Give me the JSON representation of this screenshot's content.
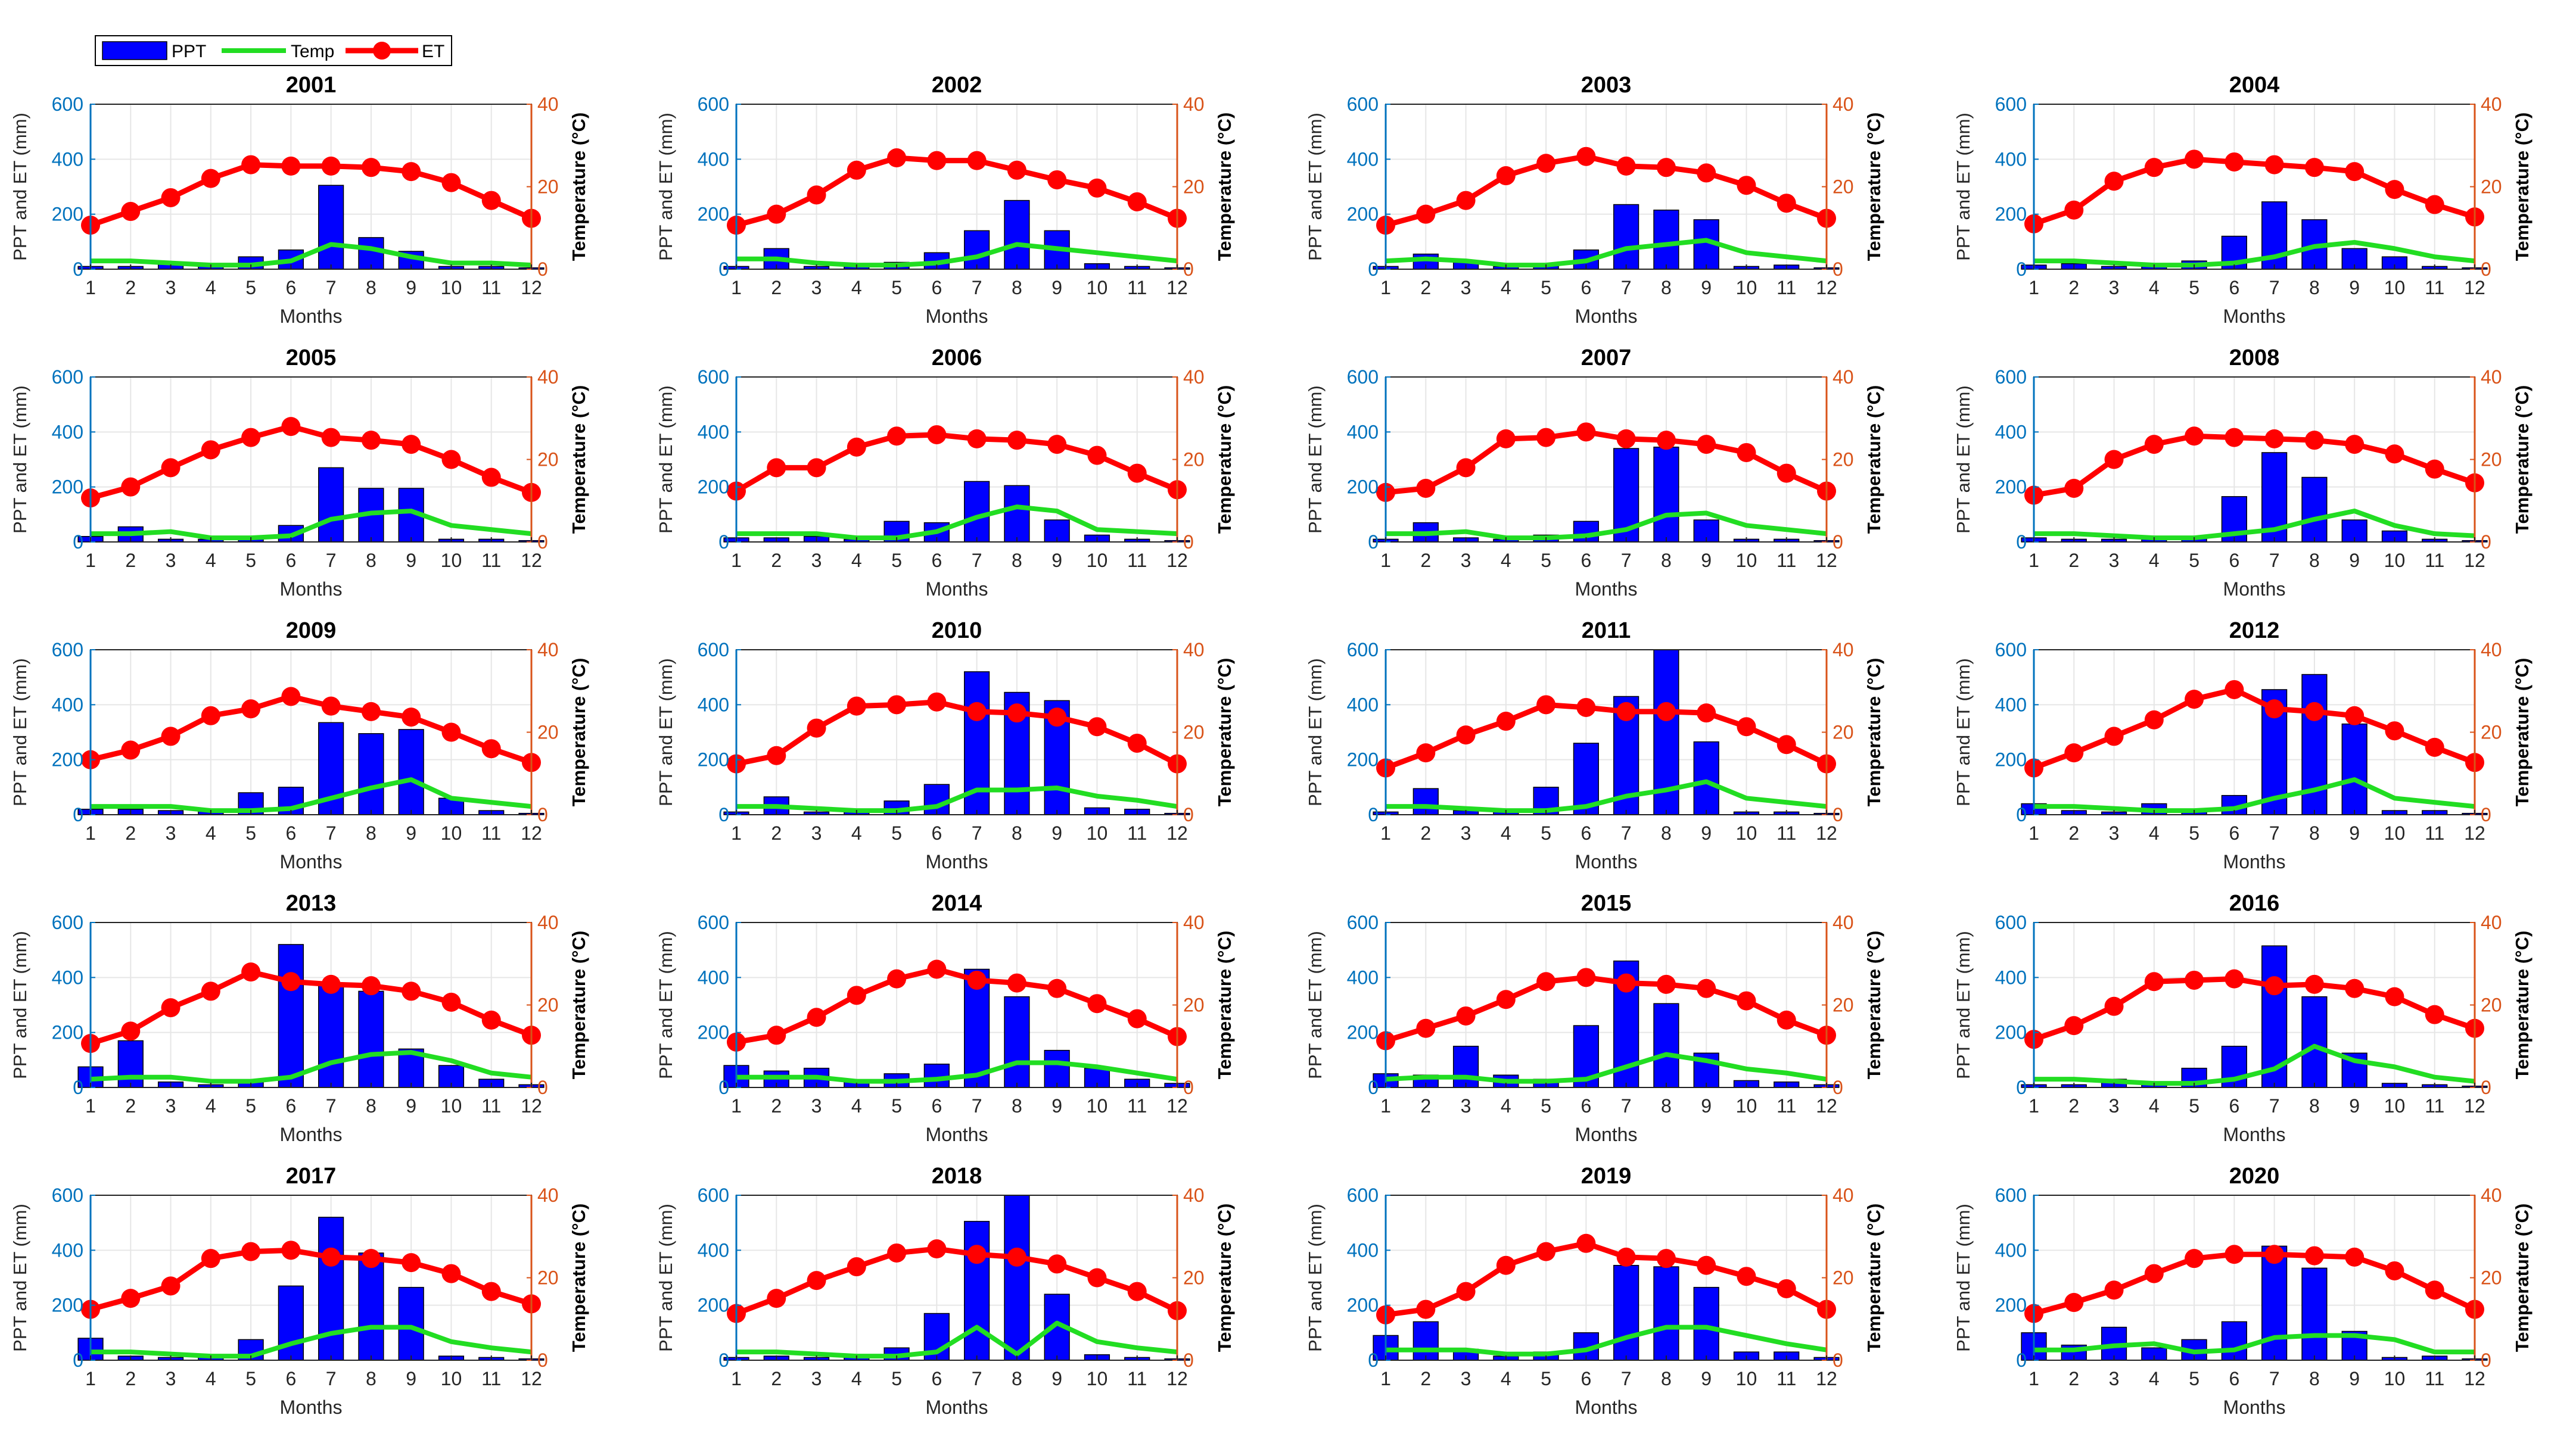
{
  "legend": {
    "ppt": "PPT",
    "temp": "Temp",
    "et": "ET"
  },
  "colors": {
    "ppt": "#0000ff",
    "temp": "#22dd22",
    "et": "#ff0000",
    "left_axis": "#0072bd",
    "right_axis": "#d95319",
    "grid": "#e6e6e6"
  },
  "axis_labels": {
    "x": "Months",
    "y_left": "PPT and ET (mm)",
    "y_right": "Temperature (°C)"
  },
  "chart_data": {
    "type": "bar+line",
    "xlabel": "Months",
    "ylabel_left": "PPT and ET (mm)",
    "ylabel_right": "Temperature (°C)",
    "categories": [
      "1",
      "2",
      "3",
      "4",
      "5",
      "6",
      "7",
      "8",
      "9",
      "10",
      "11",
      "12"
    ],
    "y_left_lim": [
      0,
      600
    ],
    "y_left_ticks": [
      "0",
      "200",
      "400",
      "600"
    ],
    "y_right_lim": [
      0,
      40
    ],
    "y_right_ticks": [
      "0",
      "20",
      "40"
    ],
    "grid": true,
    "legend_position": "top-left",
    "panels": [
      {
        "title": "2001",
        "ppt": [
          10,
          10,
          25,
          15,
          45,
          70,
          305,
          115,
          65,
          10,
          10,
          5
        ],
        "temp": [
          2,
          2,
          1.5,
          1,
          1,
          2,
          6,
          5,
          3,
          1.5,
          1.5,
          1
        ],
        "et": [
          160,
          210,
          260,
          330,
          380,
          375,
          375,
          370,
          355,
          315,
          250,
          185
        ]
      },
      {
        "title": "2002",
        "ppt": [
          10,
          75,
          10,
          10,
          25,
          60,
          140,
          250,
          140,
          20,
          10,
          5
        ],
        "temp": [
          2.5,
          2.5,
          1.5,
          1,
          1,
          1.5,
          3,
          6,
          5,
          4,
          3,
          2
        ],
        "et": [
          160,
          200,
          270,
          360,
          405,
          395,
          395,
          360,
          325,
          295,
          245,
          185
        ]
      },
      {
        "title": "2003",
        "ppt": [
          10,
          55,
          25,
          10,
          15,
          70,
          235,
          215,
          180,
          10,
          15,
          5
        ],
        "temp": [
          2,
          2.5,
          2,
          1,
          1,
          2,
          5,
          6,
          7,
          4,
          3,
          2
        ],
        "et": [
          160,
          200,
          250,
          340,
          385,
          410,
          375,
          370,
          350,
          305,
          240,
          185
        ]
      },
      {
        "title": "2004",
        "ppt": [
          15,
          20,
          10,
          10,
          30,
          120,
          245,
          180,
          75,
          45,
          10,
          5
        ],
        "temp": [
          2,
          2,
          1.5,
          1,
          1,
          1.5,
          3,
          5.5,
          6.5,
          5,
          3,
          2
        ],
        "et": [
          165,
          215,
          320,
          370,
          400,
          390,
          380,
          370,
          355,
          290,
          235,
          190
        ]
      },
      {
        "title": "2005",
        "ppt": [
          20,
          55,
          10,
          10,
          15,
          60,
          270,
          195,
          195,
          10,
          10,
          5
        ],
        "temp": [
          2,
          2,
          2.5,
          1,
          1,
          1.5,
          5.5,
          7,
          7.5,
          4,
          3,
          2
        ],
        "et": [
          160,
          200,
          270,
          335,
          380,
          420,
          380,
          370,
          355,
          300,
          235,
          180
        ]
      },
      {
        "title": "2006",
        "ppt": [
          15,
          15,
          20,
          10,
          75,
          70,
          220,
          205,
          80,
          25,
          10,
          5
        ],
        "temp": [
          2,
          2,
          2,
          1,
          1,
          2.5,
          6,
          8.5,
          7.5,
          3,
          2.5,
          2
        ],
        "et": [
          185,
          270,
          270,
          345,
          385,
          390,
          375,
          370,
          355,
          315,
          250,
          190
        ]
      },
      {
        "title": "2007",
        "ppt": [
          10,
          70,
          15,
          10,
          25,
          75,
          340,
          345,
          80,
          10,
          10,
          5
        ],
        "temp": [
          2,
          2,
          2.5,
          1,
          1,
          1.5,
          3,
          6.5,
          7,
          4,
          3,
          2
        ],
        "et": [
          180,
          195,
          270,
          375,
          380,
          400,
          375,
          370,
          355,
          325,
          250,
          185
        ]
      },
      {
        "title": "2008",
        "ppt": [
          15,
          10,
          10,
          10,
          15,
          165,
          325,
          235,
          80,
          40,
          10,
          5
        ],
        "temp": [
          2,
          2,
          1.5,
          1,
          1,
          2,
          3,
          5.5,
          7.5,
          4,
          2,
          1.5
        ],
        "et": [
          170,
          195,
          300,
          355,
          385,
          380,
          375,
          370,
          355,
          320,
          265,
          215
        ]
      },
      {
        "title": "2009",
        "ppt": [
          20,
          20,
          15,
          15,
          80,
          100,
          335,
          295,
          310,
          60,
          15,
          5
        ],
        "temp": [
          2,
          2,
          2,
          1,
          1,
          1.5,
          4,
          6.5,
          8.5,
          4,
          3,
          2
        ],
        "et": [
          200,
          235,
          285,
          360,
          385,
          430,
          395,
          375,
          355,
          300,
          240,
          190
        ]
      },
      {
        "title": "2010",
        "ppt": [
          10,
          65,
          10,
          10,
          50,
          110,
          520,
          445,
          415,
          25,
          20,
          5
        ],
        "temp": [
          2,
          2,
          1.5,
          1,
          1,
          2,
          6,
          6,
          6.5,
          4.5,
          3.5,
          2
        ],
        "et": [
          185,
          215,
          315,
          395,
          400,
          410,
          375,
          370,
          355,
          320,
          260,
          185
        ]
      },
      {
        "title": "2011",
        "ppt": [
          10,
          95,
          15,
          20,
          100,
          260,
          430,
          600,
          265,
          10,
          10,
          5
        ],
        "temp": [
          2,
          2,
          1.5,
          1,
          1,
          2,
          4.5,
          6,
          8,
          4,
          3,
          2
        ],
        "et": [
          170,
          225,
          290,
          340,
          400,
          390,
          375,
          375,
          370,
          320,
          255,
          185
        ]
      },
      {
        "title": "2012",
        "ppt": [
          40,
          15,
          10,
          40,
          15,
          70,
          455,
          510,
          330,
          15,
          15,
          5
        ],
        "temp": [
          2,
          2,
          1.5,
          1,
          1,
          1.5,
          4,
          6,
          8.5,
          4,
          3,
          2
        ],
        "et": [
          170,
          225,
          285,
          345,
          420,
          455,
          385,
          375,
          360,
          305,
          245,
          190
        ]
      },
      {
        "title": "2013",
        "ppt": [
          75,
          170,
          20,
          10,
          25,
          520,
          380,
          350,
          140,
          80,
          30,
          10
        ],
        "temp": [
          2,
          2.5,
          2.5,
          1.5,
          1.5,
          2.5,
          6,
          8,
          8.5,
          6.5,
          3.5,
          2.5
        ],
        "et": [
          160,
          205,
          290,
          350,
          420,
          385,
          375,
          370,
          350,
          310,
          245,
          190
        ]
      },
      {
        "title": "2014",
        "ppt": [
          80,
          60,
          70,
          25,
          50,
          85,
          430,
          330,
          135,
          70,
          30,
          15
        ],
        "temp": [
          2.5,
          2.5,
          2.5,
          1.5,
          1.5,
          2,
          3,
          6,
          6,
          5,
          3.5,
          2
        ],
        "et": [
          165,
          190,
          255,
          335,
          395,
          430,
          390,
          380,
          360,
          305,
          250,
          185
        ]
      },
      {
        "title": "2015",
        "ppt": [
          50,
          45,
          150,
          45,
          30,
          225,
          460,
          305,
          125,
          25,
          20,
          10
        ],
        "temp": [
          2,
          2.5,
          2.5,
          1.5,
          1.5,
          2,
          5,
          8,
          6.5,
          4.5,
          3.5,
          2
        ],
        "et": [
          170,
          215,
          260,
          320,
          385,
          400,
          380,
          375,
          360,
          315,
          245,
          190
        ]
      },
      {
        "title": "2016",
        "ppt": [
          10,
          10,
          30,
          15,
          70,
          150,
          515,
          330,
          125,
          15,
          10,
          5
        ],
        "temp": [
          2,
          2,
          1.5,
          1,
          1,
          2,
          4.5,
          10,
          6.5,
          5,
          2.5,
          1.5
        ],
        "et": [
          175,
          225,
          295,
          385,
          390,
          395,
          370,
          375,
          360,
          330,
          265,
          215
        ]
      },
      {
        "title": "2017",
        "ppt": [
          80,
          15,
          10,
          20,
          75,
          270,
          520,
          390,
          265,
          15,
          10,
          5
        ],
        "temp": [
          2,
          2,
          1.5,
          1,
          1,
          4,
          6.5,
          8,
          8,
          4.5,
          3,
          2
        ],
        "et": [
          185,
          225,
          270,
          370,
          395,
          400,
          375,
          370,
          355,
          315,
          250,
          205
        ]
      },
      {
        "title": "2018",
        "ppt": [
          10,
          15,
          10,
          10,
          45,
          170,
          505,
          600,
          240,
          20,
          10,
          5
        ],
        "temp": [
          2,
          2,
          1.5,
          1,
          1,
          2,
          8,
          1.5,
          9,
          4.5,
          3,
          2
        ],
        "et": [
          170,
          225,
          290,
          340,
          390,
          405,
          385,
          375,
          350,
          300,
          250,
          180
        ]
      },
      {
        "title": "2019",
        "ppt": [
          90,
          140,
          40,
          15,
          30,
          100,
          345,
          340,
          265,
          30,
          30,
          10
        ],
        "temp": [
          2.5,
          2.5,
          2.5,
          1.5,
          1.5,
          2.5,
          5.5,
          8,
          8,
          6,
          4,
          2.5
        ],
        "et": [
          165,
          185,
          250,
          345,
          395,
          425,
          375,
          370,
          345,
          305,
          260,
          185
        ]
      },
      {
        "title": "2020",
        "ppt": [
          100,
          55,
          120,
          45,
          75,
          140,
          415,
          335,
          105,
          10,
          15,
          5
        ],
        "temp": [
          2.5,
          2.5,
          3.5,
          4,
          2,
          2.5,
          5.5,
          6,
          6,
          5,
          2,
          2
        ],
        "et": [
          170,
          210,
          255,
          315,
          370,
          385,
          385,
          380,
          375,
          325,
          255,
          185
        ]
      }
    ]
  }
}
